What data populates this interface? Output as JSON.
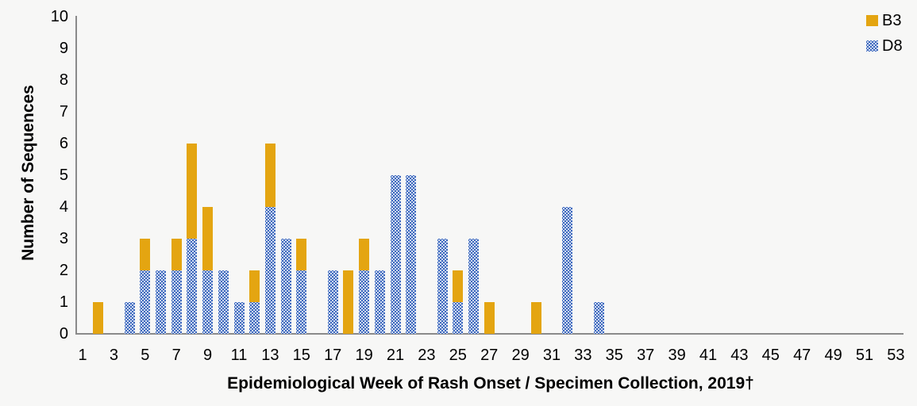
{
  "chart_data": {
    "type": "bar",
    "stacked": true,
    "title": "",
    "xlabel": "Epidemiological Week of Rash Onset / Specimen Collection, 2019†",
    "ylabel": "Number of Sequences",
    "ylim": [
      0,
      10
    ],
    "yticks": [
      0,
      1,
      2,
      3,
      4,
      5,
      6,
      7,
      8,
      9,
      10
    ],
    "xticks": [
      1,
      3,
      5,
      7,
      9,
      11,
      13,
      15,
      17,
      19,
      21,
      23,
      25,
      27,
      29,
      31,
      33,
      35,
      37,
      39,
      41,
      43,
      45,
      47,
      49,
      51,
      53
    ],
    "x_weeks": [
      1,
      2,
      3,
      4,
      5,
      6,
      7,
      8,
      9,
      10,
      11,
      12,
      13,
      14,
      15,
      16,
      17,
      18,
      19,
      20,
      21,
      22,
      23,
      24,
      25,
      26,
      27,
      28,
      29,
      30,
      31,
      32,
      33,
      34,
      35,
      36,
      37,
      38,
      39,
      40,
      41,
      42,
      43,
      44,
      45,
      46,
      47,
      48,
      49,
      50,
      51,
      52,
      53
    ],
    "grid": false,
    "legend_position": "top-right",
    "stack_order_bottom_to_top": [
      "D8",
      "B3"
    ],
    "series": [
      {
        "name": "B3",
        "color": "#E4A511",
        "fill": "solid",
        "values": [
          0,
          1,
          0,
          0,
          1,
          0,
          1,
          3,
          2,
          0,
          0,
          1,
          2,
          0,
          1,
          0,
          0,
          2,
          1,
          0,
          0,
          0,
          0,
          0,
          1,
          0,
          1,
          0,
          0,
          1,
          0,
          0,
          0,
          0,
          0,
          0,
          0,
          0,
          0,
          0,
          0,
          0,
          0,
          0,
          0,
          0,
          0,
          0,
          0,
          0,
          0,
          0,
          0
        ]
      },
      {
        "name": "D8",
        "color": "#3E69BE",
        "fill": "white-dot-pattern",
        "values": [
          0,
          0,
          0,
          1,
          2,
          2,
          2,
          3,
          2,
          2,
          1,
          1,
          4,
          3,
          2,
          0,
          2,
          0,
          2,
          2,
          5,
          5,
          0,
          3,
          1,
          3,
          0,
          0,
          0,
          0,
          0,
          4,
          0,
          1,
          0,
          0,
          0,
          0,
          0,
          0,
          0,
          0,
          0,
          0,
          0,
          0,
          0,
          0,
          0,
          0,
          0,
          0,
          0
        ]
      }
    ]
  },
  "legend": {
    "items": [
      {
        "label": "B3",
        "swatch": "gold-solid-square"
      },
      {
        "label": "D8",
        "swatch": "blue-dotted-square"
      }
    ]
  },
  "colors": {
    "background": "#F7F7F6",
    "axis_line": "#8A8A8A",
    "text": "#000000",
    "b3_gold": "#E4A511",
    "d8_blue": "#3E69BE",
    "d8_dot": "#FFFFFF"
  }
}
